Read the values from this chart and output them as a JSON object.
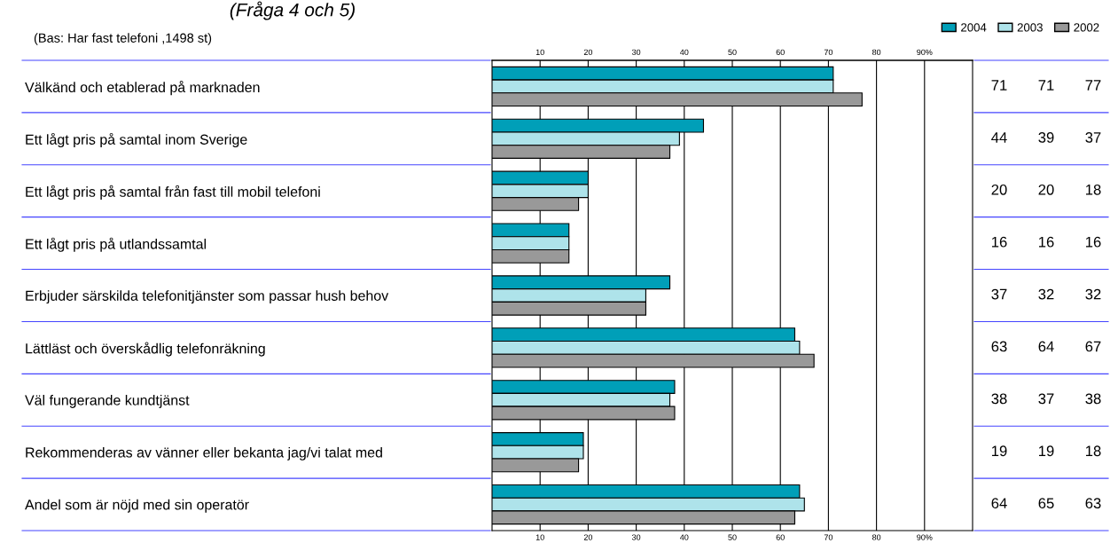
{
  "chart_data": {
    "type": "bar",
    "orientation": "horizontal",
    "title": "(Fråga 4 och 5)",
    "annotations": [
      "(Bas: Har fast telefoni ,1498 st)"
    ],
    "categories": [
      "Välkänd och etablerad på marknaden",
      "Ett lågt pris på samtal inom Sverige",
      "Ett lågt pris på samtal från fast till mobil telefoni",
      "Ett lågt pris på utlandssamtal",
      "Erbjuder särskilda telefonitjänster som passar hush behov",
      "Lättläst och överskådlig telefonräkning",
      "Väl fungerande kundtjänst",
      "Rekommenderas av vänner eller bekanta jag/vi talat med",
      "Andel som är nöjd med sin operatör"
    ],
    "series": [
      {
        "name": "2004",
        "color": "#009fb8",
        "values": [
          71,
          44,
          20,
          16,
          37,
          63,
          38,
          19,
          64
        ]
      },
      {
        "name": "2003",
        "color": "#aee3ea",
        "values": [
          71,
          39,
          20,
          16,
          32,
          64,
          37,
          19,
          65
        ]
      },
      {
        "name": "2002",
        "color": "#999999",
        "values": [
          77,
          37,
          18,
          16,
          32,
          67,
          38,
          18,
          63
        ]
      }
    ],
    "xlim": [
      0,
      100
    ],
    "xticks": [
      10,
      20,
      30,
      40,
      50,
      60,
      70,
      80,
      {
        "value": 90,
        "label": "90%"
      }
    ],
    "x2lim": [
      0,
      100
    ],
    "x2ticks": [
      10,
      20,
      30,
      40,
      50,
      60,
      70,
      80,
      {
        "value": 90,
        "label": "90%"
      }
    ],
    "grid": "x",
    "legend": "top right",
    "data_labels": true
  }
}
